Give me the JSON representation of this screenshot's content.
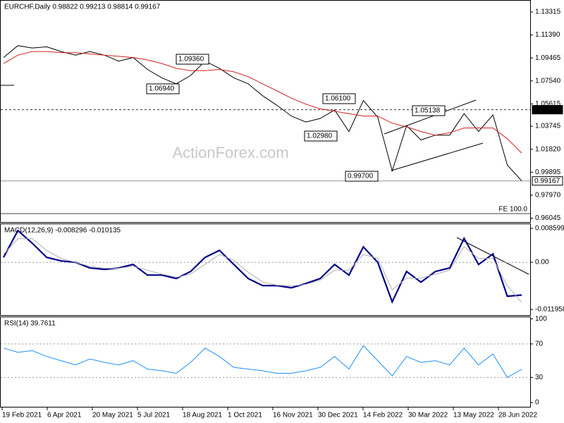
{
  "title": "EURCHF,Daily 0.98822 0.99213 0.98814 0.99167",
  "watermark": "ActionForex.com",
  "xtick_labels": [
    "19 Feb 2021",
    "6 Apr 2021",
    "20 May 2021",
    "5 Jul 2021",
    "18 Aug 2021",
    "1 Oct 2021",
    "16 Nov 2021",
    "30 Dec 2021",
    "14 Feb 2022",
    "30 Mar 2022",
    "13 May 2022",
    "28 Jun 2022"
  ],
  "annotations": [
    "1.09360",
    "1.06940",
    "1.06100",
    "1.02980",
    "0.99700",
    "1.05138"
  ],
  "fe_label": "FE 100.0",
  "chart_data": [
    {
      "type": "line",
      "ylim": [
        0.9578,
        1.142
      ],
      "yticks": [
        1.13315,
        {
          "value": 1.1139,
          "label": "1.11390"
        },
        1.09465,
        {
          "value": 1.0754,
          "label": "1.07540"
        },
        1.05615,
        1.03745,
        {
          "value": 1.0182,
          "label": "1.01820"
        },
        0.99895,
        {
          "value": 0.9797,
          "label": "0.97970"
        },
        0.96045
      ],
      "levels": [
        {
          "value": 1.0513,
          "label": "1.05130"
        },
        {
          "value": 0.99167,
          "label": "0.99167"
        }
      ],
      "fe_level": 0.9643,
      "series": [
        {
          "color": "#000000",
          "values": [
            1.095,
            1.105,
            1.103,
            1.104,
            1.1,
            1.097,
            1.1,
            1.097,
            1.092,
            1.095,
            1.085,
            1.078,
            1.073,
            1.08,
            1.092,
            1.086,
            1.078,
            1.073,
            1.063,
            1.055,
            1.046,
            1.041,
            1.044,
            1.051,
            1.033,
            1.059,
            1.045,
            1.0,
            1.038,
            1.026,
            1.03,
            1.03,
            1.048,
            1.033,
            1.047,
            1.005,
            0.99167
          ]
        },
        {
          "color": "#d62020",
          "values": [
            1.09,
            1.097,
            1.1,
            1.1,
            1.099,
            1.099,
            1.098,
            1.097,
            1.096,
            1.095,
            1.093,
            1.09,
            1.086,
            1.084,
            1.084,
            1.085,
            1.083,
            1.079,
            1.073,
            1.067,
            1.061,
            1.056,
            1.052,
            1.05,
            1.048,
            1.046,
            1.046,
            1.04,
            1.037,
            1.033,
            1.03,
            1.032,
            1.036,
            1.036,
            1.036,
            1.027,
            1.015
          ]
        }
      ]
    },
    {
      "type": "line",
      "title": "MACD(12,26,9) -0.008296 -0.010135",
      "ylim": [
        -0.0134,
        0.0095
      ],
      "yticks": [
        0.008599,
        {
          "value": 0,
          "label": "0.00"
        },
        -0.011958
      ],
      "zero_line": true,
      "series": [
        {
          "color": "#00008b",
          "values": [
            0.00125,
            0.00806,
            0.00484,
            0.00125,
            0.00036,
            0,
            -0.00143,
            -0.00179,
            -0.00143,
            -0.00054,
            -0.00323,
            -0.00323,
            -0.00412,
            -0.00233,
            0.00125,
            0.00305,
            -0.00054,
            -0.00412,
            -0.00591,
            -0.00591,
            -0.00645,
            -0.00538,
            -0.00412,
            -0.00054,
            -0.00323,
            0.00394,
            0,
            -0.01003,
            -0.00233,
            -0.00502,
            -0.00233,
            -0.00143,
            0.00609,
            -0.00054,
            0.00215,
            -0.0086,
            -0.008296
          ]
        },
        {
          "color": "#b0b0b0",
          "values": [
            0.002,
            0.006,
            0.006,
            0.003,
            0.001,
            0,
            -0.001,
            -0.0015,
            -0.0015,
            -0.001,
            -0.002,
            -0.003,
            -0.0038,
            -0.003,
            -0.0005,
            0.002,
            0.0005,
            -0.0025,
            -0.005,
            -0.0058,
            -0.006,
            -0.0056,
            -0.0045,
            -0.002,
            -0.002,
            0.002,
            0.001,
            -0.007,
            -0.004,
            -0.004,
            -0.003,
            -0.002,
            0.004,
            0.001,
            0.001,
            -0.006,
            -0.010135
          ]
        }
      ]
    },
    {
      "type": "line",
      "title": "RSI(14) 39.7611",
      "ylim": [
        -5,
        101
      ],
      "yticks": [
        100,
        70,
        30,
        0
      ],
      "dashed_ticks": [
        70,
        30
      ],
      "series": [
        {
          "color": "#1e90ff",
          "values": [
            65,
            60,
            62,
            55,
            50,
            45,
            52,
            48,
            45,
            50,
            40,
            38,
            35,
            48,
            65,
            55,
            42,
            40,
            38,
            35,
            35,
            38,
            42,
            55,
            40,
            68,
            50,
            32,
            55,
            48,
            50,
            45,
            65,
            45,
            58,
            30,
            39.7611
          ]
        }
      ]
    }
  ]
}
